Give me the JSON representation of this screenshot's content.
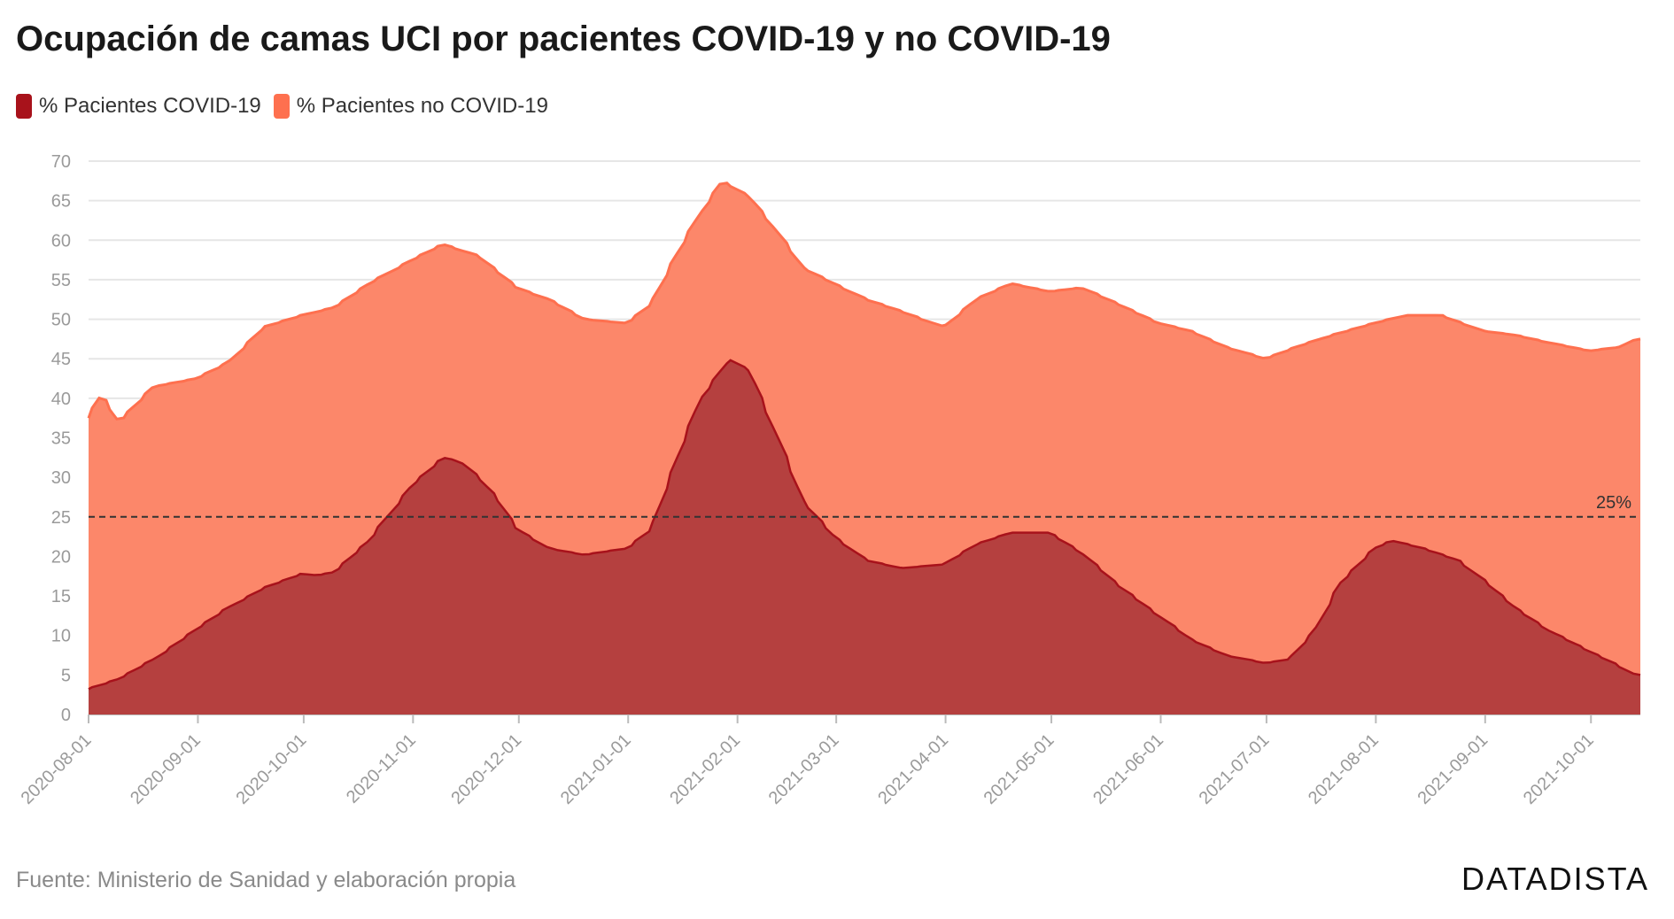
{
  "title": "Ocupación de camas UCI por pacientes COVID-19 y no COVID-19",
  "legend": [
    {
      "label": "% Pacientes COVID-19",
      "color": "#a8121b"
    },
    {
      "label": "% Pacientes no COVID-19",
      "color": "#fe704f"
    }
  ],
  "source": "Fuente: Ministerio de Sanidad y elaboración propia",
  "brand": "DATADISTA",
  "chart_data": {
    "type": "area",
    "stacked": true,
    "ylim": [
      0,
      70
    ],
    "yticks": [
      0,
      5,
      10,
      15,
      20,
      25,
      30,
      35,
      40,
      45,
      50,
      55,
      60,
      65,
      70
    ],
    "xlim": [
      "2020-08-01",
      "2021-10-15"
    ],
    "xticks": [
      "2020-08-01",
      "2020-09-01",
      "2020-10-01",
      "2020-11-01",
      "2020-12-01",
      "2021-01-01",
      "2021-02-01",
      "2021-03-01",
      "2021-04-01",
      "2021-05-01",
      "2021-06-01",
      "2021-07-01",
      "2021-08-01",
      "2021-09-01",
      "2021-10-01"
    ],
    "grid": true,
    "reference_line": {
      "value": 25,
      "label": "25%",
      "style": "dashed"
    },
    "series": [
      {
        "name": "% Pacientes COVID-19",
        "color": "#a8121b",
        "fill": "#b5403f",
        "x": [
          "2020-08-01",
          "2020-08-10",
          "2020-08-20",
          "2020-09-01",
          "2020-09-10",
          "2020-09-20",
          "2020-10-01",
          "2020-10-05",
          "2020-10-10",
          "2020-10-20",
          "2020-11-01",
          "2020-11-10",
          "2020-11-15",
          "2020-11-20",
          "2020-11-25",
          "2020-12-01",
          "2020-12-10",
          "2020-12-20",
          "2021-01-01",
          "2021-01-08",
          "2021-01-15",
          "2021-01-22",
          "2021-01-30",
          "2021-02-05",
          "2021-02-12",
          "2021-02-20",
          "2021-03-01",
          "2021-03-10",
          "2021-03-20",
          "2021-04-01",
          "2021-04-10",
          "2021-04-20",
          "2021-05-01",
          "2021-05-10",
          "2021-05-20",
          "2021-06-01",
          "2021-06-10",
          "2021-06-20",
          "2021-07-01",
          "2021-07-08",
          "2021-07-15",
          "2021-07-22",
          "2021-08-01",
          "2021-08-06",
          "2021-08-15",
          "2021-08-25",
          "2021-09-01",
          "2021-09-10",
          "2021-09-20",
          "2021-10-01",
          "2021-10-08",
          "2021-10-14"
        ],
        "y": [
          3.2,
          4.5,
          7.0,
          10.8,
          13.5,
          16.0,
          17.8,
          17.6,
          18.0,
          22.0,
          29.0,
          32.5,
          32.0,
          30.0,
          27.5,
          23.5,
          21.0,
          20.2,
          21.0,
          23.5,
          32.0,
          40.0,
          45.0,
          43.5,
          36.0,
          27.0,
          22.5,
          19.5,
          18.5,
          19.0,
          21.5,
          23.0,
          23.0,
          20.5,
          16.5,
          12.5,
          9.5,
          7.5,
          6.5,
          7.0,
          10.5,
          16.5,
          21.0,
          22.0,
          21.0,
          19.5,
          17.0,
          13.5,
          10.5,
          8.0,
          6.5,
          5.0
        ]
      },
      {
        "name": "% Pacientes no COVID-19",
        "color": "#fe704f",
        "fill": "#fc876a",
        "total_x": [
          "2020-08-01",
          "2020-08-05",
          "2020-08-10",
          "2020-08-20",
          "2020-09-01",
          "2020-09-10",
          "2020-09-20",
          "2020-10-01",
          "2020-10-10",
          "2020-10-20",
          "2020-11-01",
          "2020-11-10",
          "2020-11-20",
          "2020-12-01",
          "2020-12-10",
          "2020-12-20",
          "2021-01-01",
          "2021-01-08",
          "2021-01-15",
          "2021-01-22",
          "2021-01-28",
          "2021-02-05",
          "2021-02-12",
          "2021-02-20",
          "2021-03-01",
          "2021-03-10",
          "2021-03-20",
          "2021-04-01",
          "2021-04-10",
          "2021-04-20",
          "2021-05-01",
          "2021-05-10",
          "2021-05-20",
          "2021-06-01",
          "2021-06-10",
          "2021-06-20",
          "2021-07-01",
          "2021-07-10",
          "2021-07-20",
          "2021-08-01",
          "2021-08-10",
          "2021-08-20",
          "2021-09-01",
          "2021-09-10",
          "2021-09-20",
          "2021-10-01",
          "2021-10-10",
          "2021-10-14"
        ],
        "total_y": [
          37.5,
          40.5,
          37.0,
          41.5,
          42.5,
          44.5,
          49.0,
          50.5,
          51.5,
          54.5,
          57.5,
          59.5,
          58.0,
          54.0,
          52.5,
          50.0,
          49.5,
          52.0,
          58.0,
          63.5,
          67.5,
          65.5,
          61.5,
          56.5,
          54.5,
          52.5,
          51.0,
          49.0,
          52.5,
          54.5,
          53.5,
          54.0,
          52.0,
          49.5,
          48.5,
          46.5,
          45.0,
          46.5,
          48.0,
          49.5,
          50.5,
          50.5,
          48.5,
          48.0,
          47.0,
          46.0,
          46.5,
          47.5
        ]
      }
    ]
  }
}
